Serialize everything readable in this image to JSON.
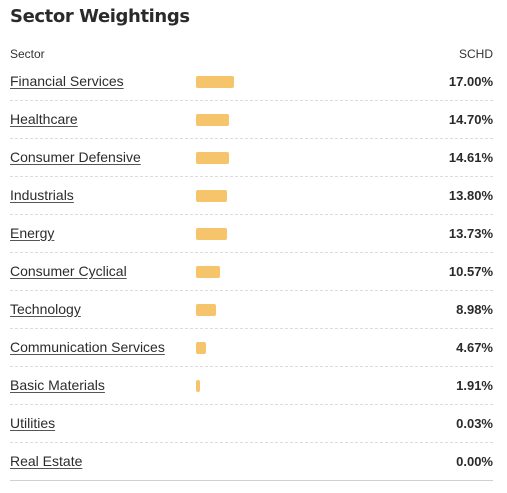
{
  "title": "Sector Weightings",
  "header": {
    "sector_label": "Sector",
    "ticker_label": "SCHD"
  },
  "bar_color": "#f5c46b",
  "bar_scale_max": 17.0,
  "sectors": [
    {
      "name": "Financial Services",
      "value": 17.0,
      "value_label": "17.00%"
    },
    {
      "name": "Healthcare",
      "value": 14.7,
      "value_label": "14.70%"
    },
    {
      "name": "Consumer Defensive",
      "value": 14.61,
      "value_label": "14.61%"
    },
    {
      "name": "Industrials",
      "value": 13.8,
      "value_label": "13.80%"
    },
    {
      "name": "Energy",
      "value": 13.73,
      "value_label": "13.73%"
    },
    {
      "name": "Consumer Cyclical",
      "value": 10.57,
      "value_label": "10.57%"
    },
    {
      "name": "Technology",
      "value": 8.98,
      "value_label": "8.98%"
    },
    {
      "name": "Communication Services",
      "value": 4.67,
      "value_label": "4.67%"
    },
    {
      "name": "Basic Materials",
      "value": 1.91,
      "value_label": "1.91%"
    },
    {
      "name": "Utilities",
      "value": 0.03,
      "value_label": "0.03%"
    },
    {
      "name": "Real Estate",
      "value": 0.0,
      "value_label": "0.00%"
    }
  ]
}
